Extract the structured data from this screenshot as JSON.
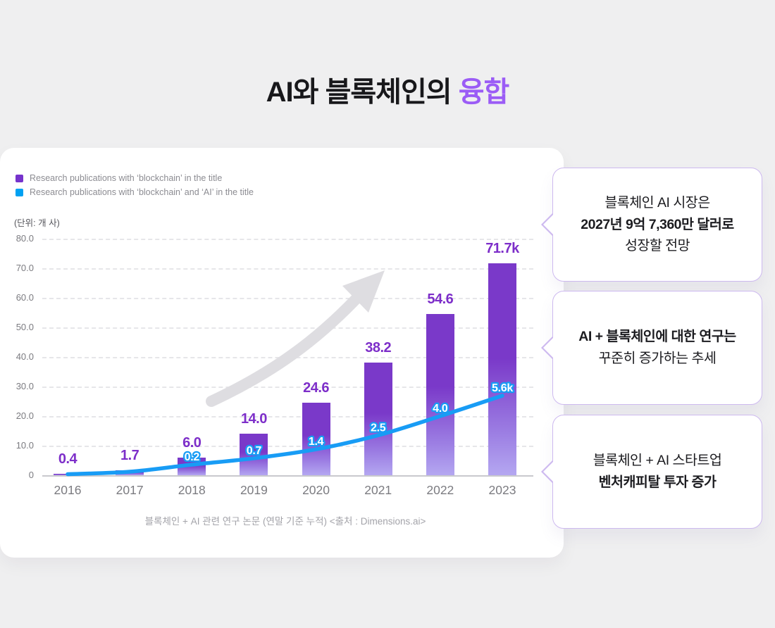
{
  "page": {
    "title_prefix": "AI와 블록체인의 ",
    "title_accent": "융합",
    "accent_color": "#9b5cf6",
    "background_color": "#efeff0"
  },
  "chart_data": {
    "type": "bar",
    "title": "",
    "unit_label": "(단위: 개 사)",
    "caption": "블록체인 + AI 관련 연구 논문 (연말 기준 누적) <출처 : Dimensions.ai>",
    "categories": [
      "2016",
      "2017",
      "2018",
      "2019",
      "2020",
      "2021",
      "2022",
      "2023"
    ],
    "series": [
      {
        "name": "Research publications with ‘blockchain’ in the title",
        "type": "bar",
        "color": "#7a39c9",
        "values": [
          0.4,
          1.7,
          6.0,
          14.0,
          24.6,
          38.2,
          54.6,
          71.7
        ],
        "labels": [
          "0.4",
          "1.7",
          "6.0",
          "14.0",
          "24.6",
          "38.2",
          "54.6",
          "71.7k"
        ]
      },
      {
        "name": "Research publications with ‘blockchain’ and ‘AI’ in the title",
        "type": "line",
        "color": "#189cf5",
        "values": [
          null,
          null,
          0.2,
          0.7,
          1.4,
          2.5,
          4.0,
          5.6
        ],
        "labels": [
          "",
          "",
          "0.2",
          "0.7",
          "1.4",
          "2.5",
          "4.0",
          "5.6k"
        ]
      }
    ],
    "legend": [
      {
        "label": "Research publications with ‘blockchain’ in the title",
        "color": "#7633cc"
      },
      {
        "label": "Research publications with ‘blockchain’ and ‘AI’ in the title",
        "color": "#00a1f2"
      }
    ],
    "legend_position": "top-left",
    "xlabel": "",
    "ylabel": "",
    "ylim": [
      0,
      80
    ],
    "y_ticks": [
      "80.0",
      "70.0",
      "60.0",
      "50.0",
      "40.0",
      "30.0",
      "20.0",
      "10.0",
      "0"
    ],
    "grid": true,
    "bar_label_color": "#7d2ec9",
    "line_label_fill": "#ffffff",
    "line_label_outline": "#189cf5",
    "watermark": "upward-trend-arrow"
  },
  "callouts": [
    {
      "lines": [
        {
          "text": "블록체인 AI 시장은",
          "bold": false
        },
        {
          "text": "2027년 9억 7,360만 달러로",
          "bold": true
        },
        {
          "text": "성장할 전망",
          "bold": false
        }
      ]
    },
    {
      "lines": [
        {
          "text": "AI + 블록체인에 대한 연구는",
          "bold": true
        },
        {
          "text": "꾸준히 증가하는 추세",
          "bold": false
        }
      ]
    },
    {
      "lines": [
        {
          "text": "블록체인 + AI 스타트업",
          "bold": false
        },
        {
          "text": "벤처캐피탈 투자 증가",
          "bold": true
        }
      ]
    }
  ]
}
